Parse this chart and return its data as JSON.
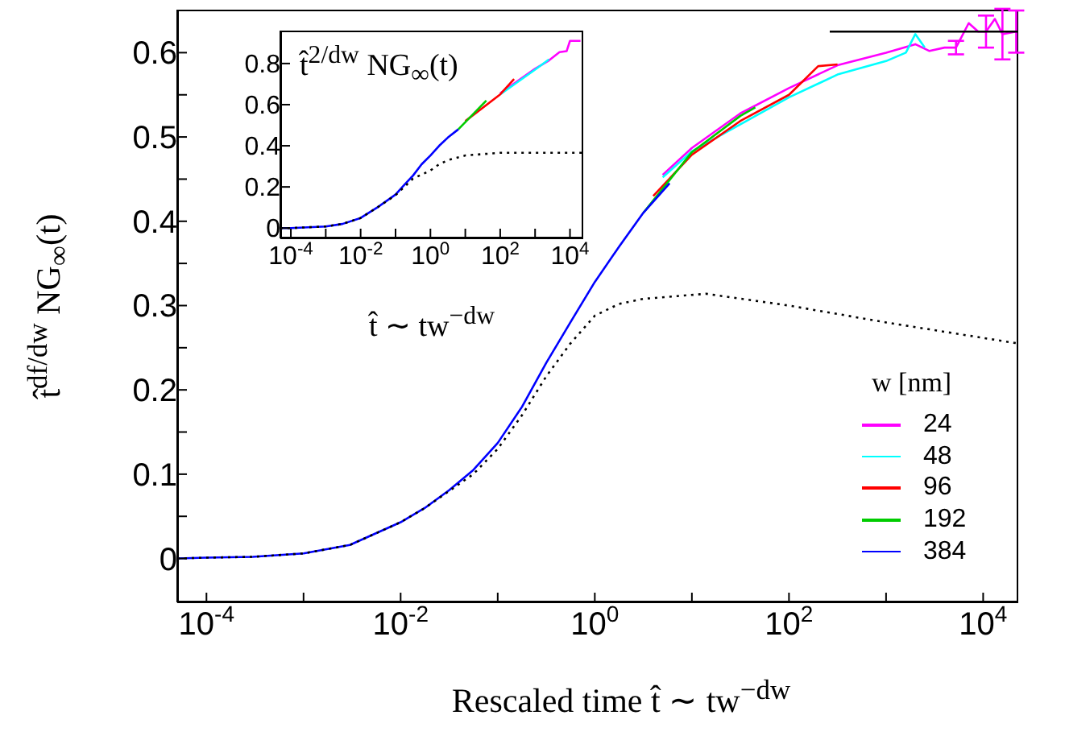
{
  "chart_data": [
    {
      "type": "line",
      "xlabel": "Rescaled time t̂ ∼ tw$^{−dw}$",
      "ylabel": "t̂$^{df/dw}$ NG$_{∞}$(t)",
      "legend_title": "w [nm]",
      "legend": "bottom right",
      "log": "x",
      "marker": "none",
      "xlim": [
        5e-05,
        23000
      ],
      "ylim": [
        -0.052,
        0.651
      ],
      "xticks": [
        {
          "value": 0.0001,
          "label": "10$^{-4}$"
        },
        {
          "value": 0.001,
          "label": null
        },
        {
          "value": 0.01,
          "label": "10$^{-2}$"
        },
        {
          "value": 0.1,
          "label": null
        },
        {
          "value": 1,
          "label": "10$^{0}$"
        },
        {
          "value": 10,
          "label": null
        },
        {
          "value": 100,
          "label": "10$^{2}$"
        },
        {
          "value": 1000,
          "label": null
        },
        {
          "value": 10000,
          "label": "10$^{4}$"
        }
      ],
      "yticks": [
        0,
        {
          "value": 0.05,
          "label": null
        },
        0.1,
        {
          "value": 0.15,
          "label": null
        },
        0.2,
        {
          "value": 0.25,
          "label": null
        },
        0.3,
        {
          "value": 0.35,
          "label": null
        },
        0.4,
        {
          "value": 0.45,
          "label": null
        },
        0.5,
        {
          "value": 0.55,
          "label": null
        },
        0.6
      ],
      "series": [
        {
          "name": "24",
          "color": "#ff00ff",
          "x": [
            5,
            10,
            31.6,
            100,
            316,
            1000,
            2000,
            2800,
            4000,
            5250,
            7100,
            8900,
            10700,
            13200,
            15800,
            21900
          ],
          "values": [
            0.455,
            0.487,
            0.528,
            0.558,
            0.585,
            0.6,
            0.61,
            0.602,
            0.606,
            0.606,
            0.635,
            0.625,
            0.625,
            0.64,
            0.622,
            0.625
          ],
          "errors": [
            null,
            null,
            null,
            null,
            null,
            null,
            null,
            null,
            null,
            0.008,
            null,
            null,
            0.019,
            null,
            0.03,
            0.025
          ]
        },
        {
          "name": "48",
          "color": "#00ffff",
          "x": [
            5,
            10,
            100,
            316,
            1000,
            1600,
            2000,
            2500
          ],
          "values": [
            0.452,
            0.483,
            0.547,
            0.574,
            0.59,
            0.6,
            0.622,
            0.606
          ]
        },
        {
          "name": "96",
          "color": "#ff0000",
          "x": [
            4,
            10,
            31.6,
            100,
            200,
            316
          ],
          "values": [
            0.43,
            0.479,
            0.519,
            0.55,
            0.584,
            0.586
          ]
        },
        {
          "name": "192",
          "color": "#00cc00",
          "x": [
            3.16,
            10,
            31.6,
            45
          ],
          "values": [
            0.41,
            0.482,
            0.525,
            0.535
          ]
        },
        {
          "name": "384",
          "color": "#0000ff",
          "x": [
            5e-05,
            0.0001,
            0.0003,
            0.001,
            0.003,
            0.01,
            0.0178,
            0.0316,
            0.056,
            0.1,
            0.178,
            0.316,
            0.56,
            1,
            1.78,
            3.16,
            5.9
          ],
          "values": [
            0,
            0.001,
            0.002,
            0.006,
            0.016,
            0.043,
            0.06,
            0.081,
            0.105,
            0.137,
            0.18,
            0.232,
            0.28,
            0.328,
            0.37,
            0.41,
            0.445
          ]
        },
        {
          "color": "#000000",
          "line_style": "dotted",
          "x": [
            5e-05,
            0.0001,
            0.0003,
            0.001,
            0.003,
            0.01,
            0.0178,
            0.0316,
            0.056,
            0.1,
            0.178,
            0.316,
            0.56,
            1,
            1.78,
            3.16,
            14,
            100,
            1000,
            23000
          ],
          "values": [
            0,
            0.001,
            0.002,
            0.006,
            0.016,
            0.043,
            0.06,
            0.08,
            0.1,
            0.13,
            0.17,
            0.216,
            0.255,
            0.288,
            0.302,
            0.308,
            0.314,
            0.3,
            0.28,
            0.255
          ]
        },
        {
          "color": "#000000",
          "x": [
            263,
            23000
          ],
          "values": [
            0.625,
            0.625
          ]
        }
      ]
    },
    {
      "type": "line",
      "xlabel": "t̂ ∼ tw$^{−dw}$",
      "ylabel": "t̂$^{2/dw}$ NG$_{∞}$(t)",
      "log": "x",
      "marker": "none",
      "xlim": [
        5e-05,
        24000
      ],
      "ylim": [
        -0.05,
        0.96
      ],
      "xticks": [
        {
          "value": 0.0001,
          "label": "10$^{-4}$"
        },
        {
          "value": 0.001,
          "label": null
        },
        {
          "value": 0.01,
          "label": "10$^{-2}$"
        },
        {
          "value": 0.1,
          "label": null
        },
        {
          "value": 1,
          "label": "10$^{0}$"
        },
        {
          "value": 10,
          "label": null
        },
        {
          "value": 100,
          "label": "10$^{2}$"
        },
        {
          "value": 1000,
          "label": null
        },
        {
          "value": 10000,
          "label": "10$^{4}$"
        }
      ],
      "yticks": [
        0,
        0.2,
        0.4,
        0.6,
        0.8
      ],
      "series": [
        {
          "color": "#ff00ff",
          "x": [
            100,
            1000,
            2500,
            5000,
            8000,
            10000,
            20000
          ],
          "values": [
            0.655,
            0.775,
            0.815,
            0.855,
            0.86,
            0.91,
            0.91
          ]
        },
        {
          "color": "#00ffff",
          "x": [
            100,
            1000,
            2500
          ],
          "values": [
            0.65,
            0.77,
            0.82
          ]
        },
        {
          "color": "#ff0000",
          "x": [
            10,
            100,
            250
          ],
          "values": [
            0.52,
            0.65,
            0.725
          ]
        },
        {
          "color": "#00cc00",
          "x": [
            6.3,
            40
          ],
          "values": [
            0.48,
            0.62
          ]
        },
        {
          "color": "#0000ff",
          "x": [
            5e-05,
            0.0001,
            0.001,
            0.003,
            0.01,
            0.03,
            0.1,
            0.178,
            0.316,
            0.56,
            1,
            1.78,
            3.16,
            6.3
          ],
          "values": [
            0,
            0,
            0.008,
            0.02,
            0.049,
            0.1,
            0.163,
            0.21,
            0.255,
            0.31,
            0.353,
            0.4,
            0.44,
            0.48
          ]
        },
        {
          "color": "#000000",
          "line_style": "dotted",
          "x": [
            5e-05,
            0.0001,
            0.001,
            0.003,
            0.01,
            0.03,
            0.1,
            0.178,
            0.316,
            0.56,
            1,
            1.78,
            3.16,
            10,
            100,
            24000
          ],
          "values": [
            0,
            0,
            0.008,
            0.02,
            0.049,
            0.1,
            0.16,
            0.2,
            0.24,
            0.26,
            0.28,
            0.31,
            0.33,
            0.353,
            0.366,
            0.366
          ]
        }
      ]
    }
  ]
}
